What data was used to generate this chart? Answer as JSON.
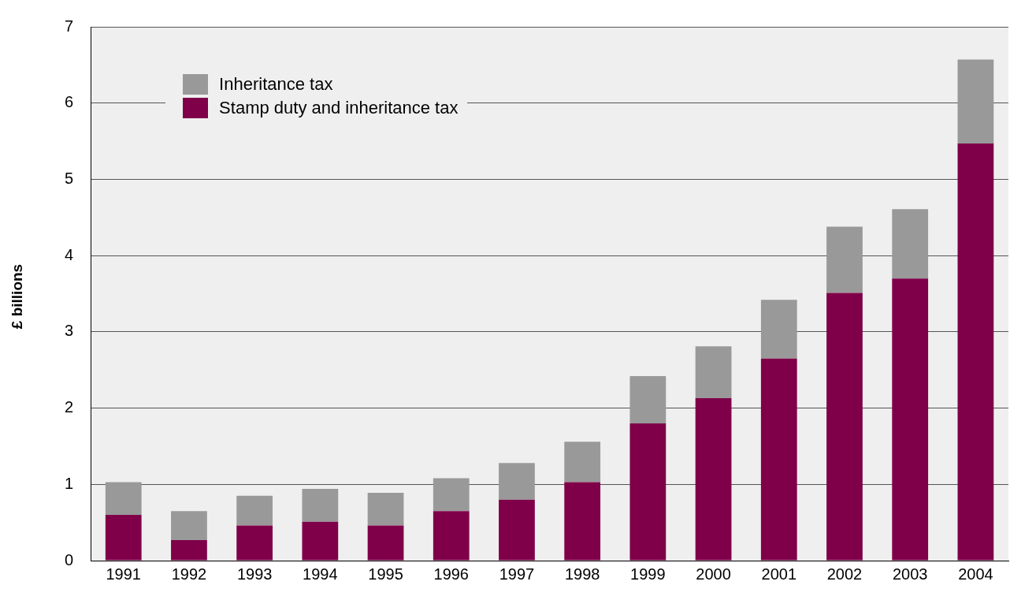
{
  "chart_data": {
    "type": "bar",
    "stacked": true,
    "ylabel": "£ billions",
    "categories": [
      "1991",
      "1992",
      "1993",
      "1994",
      "1995",
      "1996",
      "1997",
      "1998",
      "1999",
      "2000",
      "2001",
      "2002",
      "2003",
      "2004"
    ],
    "series": [
      {
        "name": "Stamp duty and inheritance tax",
        "color": "#7f0049",
        "values": [
          0.6,
          0.27,
          0.46,
          0.51,
          0.46,
          0.65,
          0.8,
          1.03,
          1.8,
          2.13,
          2.65,
          3.51,
          3.7,
          5.47
        ]
      },
      {
        "name": "Inheritance tax",
        "color": "#999999",
        "values": [
          0.43,
          0.38,
          0.39,
          0.43,
          0.43,
          0.43,
          0.48,
          0.53,
          0.62,
          0.68,
          0.77,
          0.87,
          0.91,
          1.1
        ]
      }
    ],
    "ylim": [
      0,
      7
    ],
    "yticks": [
      0,
      1,
      2,
      3,
      4,
      5,
      6,
      7
    ],
    "grid": "y",
    "legend": "top left"
  }
}
